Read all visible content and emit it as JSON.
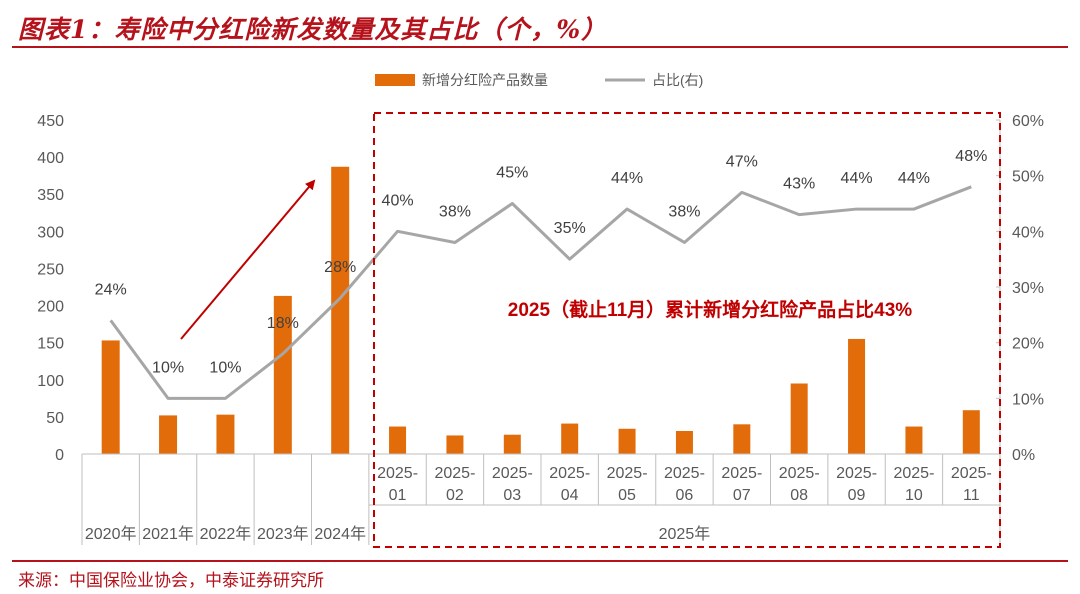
{
  "figure": {
    "title": "图表1：寿险中分红险新发数量及其占比（个，%）",
    "source": "来源：中国保险业协会，中泰证券研究所"
  },
  "colors": {
    "bar": "#e36c0a",
    "line": "#a6a6a6",
    "accent": "#c00000",
    "axis": "#595959",
    "grid": "#bfbfbf"
  },
  "chart_data": {
    "type": "bar",
    "title": "",
    "categories": [
      "2020年",
      "2021年",
      "2022年",
      "2023年",
      "2024年",
      "2025-01",
      "2025-02",
      "2025-03",
      "2025-04",
      "2025-05",
      "2025-06",
      "2025-07",
      "2025-08",
      "2025-09",
      "2025-10",
      "2025-11"
    ],
    "category_lines": [
      [
        "2020年"
      ],
      [
        "2021年"
      ],
      [
        "2022年"
      ],
      [
        "2023年"
      ],
      [
        "2024年"
      ],
      [
        "2025-",
        "01"
      ],
      [
        "2025-",
        "02"
      ],
      [
        "2025-",
        "03"
      ],
      [
        "2025-",
        "04"
      ],
      [
        "2025-",
        "05"
      ],
      [
        "2025-",
        "06"
      ],
      [
        "2025-",
        "07"
      ],
      [
        "2025-",
        "08"
      ],
      [
        "2025-",
        "09"
      ],
      [
        "2025-",
        "10"
      ],
      [
        "2025-",
        "11"
      ]
    ],
    "group_label": "2025年",
    "series": [
      {
        "name": "新增分红险产品数量",
        "type": "bar",
        "axis": "left",
        "values": [
          153,
          52,
          53,
          213,
          387,
          37,
          25,
          26,
          41,
          34,
          31,
          40,
          95,
          155,
          37,
          59
        ]
      },
      {
        "name": "占比(右)",
        "type": "line",
        "axis": "right",
        "values": [
          24,
          10,
          10,
          18,
          28,
          40,
          38,
          45,
          35,
          44,
          38,
          47,
          43,
          44,
          44,
          48
        ],
        "labels": [
          "24%",
          "10%",
          "10%",
          "18%",
          "28%",
          "40%",
          "38%",
          "45%",
          "35%",
          "44%",
          "38%",
          "47%",
          "43%",
          "44%",
          "44%",
          "48%"
        ]
      }
    ],
    "ylim_left": [
      0,
      450
    ],
    "yticks_left": [
      "0",
      "50",
      "100",
      "150",
      "200",
      "250",
      "300",
      "350",
      "400",
      "450"
    ],
    "ylim_right": [
      0,
      60
    ],
    "yticks_right": [
      "0%",
      "10%",
      "20%",
      "30%",
      "40%",
      "50%",
      "60%"
    ],
    "annotation": "2025（截止11月）累计新增分红险产品占比43%",
    "trend_arrow": "2021年 → 2024年 上升",
    "legend_position": "top"
  }
}
